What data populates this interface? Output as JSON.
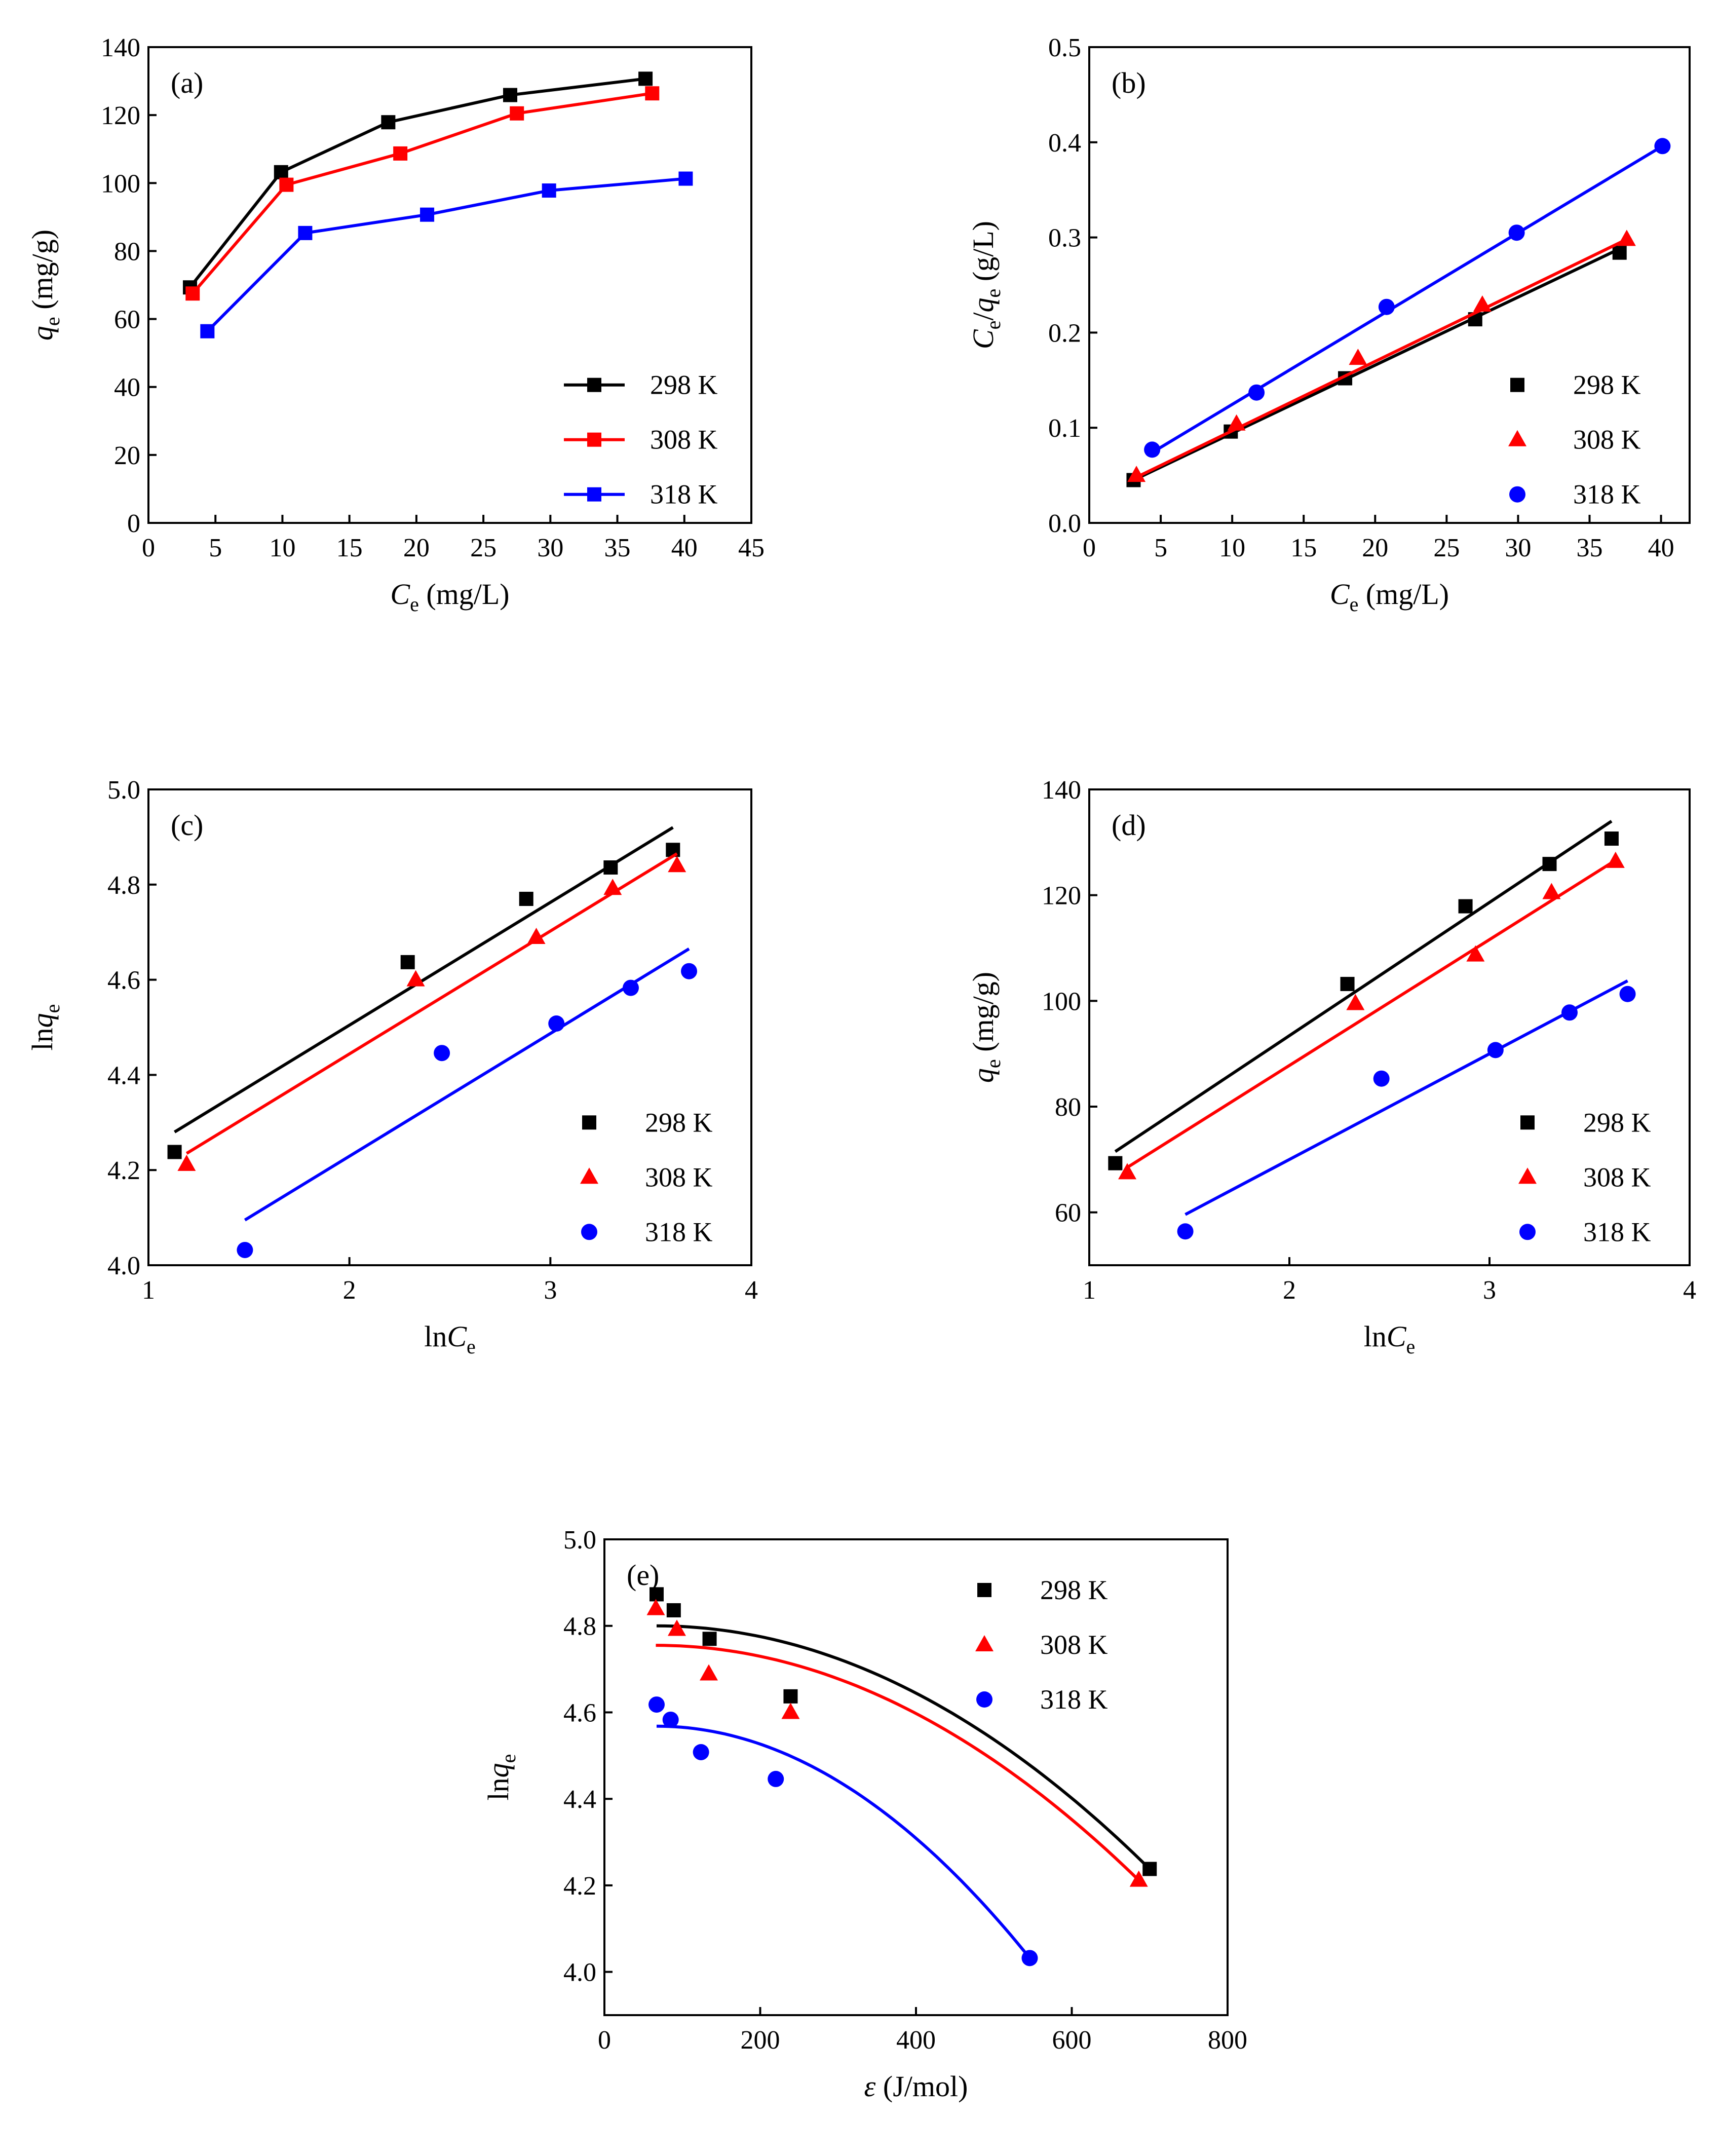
{
  "figure": {
    "description_free": true
  },
  "colors": {
    "298 K": "#000000",
    "308 K": "#ff0000",
    "318 K": "#0000ff"
  },
  "chart_data": [
    {
      "panel_label": "(a)",
      "type": "line",
      "marker": "square",
      "xlim": [
        0,
        45
      ],
      "ylim": [
        0,
        140
      ],
      "xticks": [
        0,
        5,
        10,
        15,
        20,
        25,
        30,
        35,
        40,
        45
      ],
      "yticks": [
        0,
        20,
        40,
        60,
        80,
        100,
        120,
        140
      ],
      "xlabel": {
        "main": "C",
        "sub": "e",
        "rest": " (mg/L)"
      },
      "ylabel": {
        "main": "q",
        "sub": "e",
        "rest": " (mg/g)"
      },
      "legend": "right",
      "legend_style": "line-marker",
      "series": [
        {
          "name": "298 K",
          "x": [
            3.1,
            9.9,
            17.9,
            27.0,
            37.1
          ],
          "y": [
            69.3,
            103.2,
            117.9,
            125.9,
            130.7
          ]
        },
        {
          "name": "308 K",
          "x": [
            3.3,
            10.3,
            18.8,
            27.5,
            37.6
          ],
          "y": [
            67.5,
            99.5,
            108.7,
            120.5,
            126.4
          ]
        },
        {
          "name": "318 K",
          "x": [
            4.4,
            11.7,
            20.8,
            29.9,
            40.1
          ],
          "y": [
            56.4,
            85.3,
            90.7,
            97.8,
            101.3
          ]
        }
      ]
    },
    {
      "panel_label": "(b)",
      "type": "scatter",
      "marker": "mixed",
      "xlim": [
        0,
        42
      ],
      "ylim": [
        0,
        0.5
      ],
      "xticks": [
        0,
        5,
        10,
        15,
        20,
        25,
        30,
        35,
        40
      ],
      "yticks": [
        0.0,
        0.1,
        0.2,
        0.3,
        0.4,
        0.5
      ],
      "ytick_decimals": 1,
      "xlabel": {
        "main": "C",
        "sub": "e",
        "rest": " (mg/L)"
      },
      "ylabel": {
        "main": "C",
        "sub": "e",
        "mid": "/",
        "main2": "q",
        "sub2": "e",
        "rest": " (g/L)"
      },
      "legend": "right",
      "series": [
        {
          "name": "298 K",
          "marker": "square",
          "x": [
            3.1,
            9.9,
            17.9,
            27.0,
            37.1
          ],
          "y": [
            0.045,
            0.096,
            0.152,
            0.214,
            0.284
          ],
          "fit": [
            [
              3.1,
              0.045
            ],
            [
              37.1,
              0.288
            ]
          ]
        },
        {
          "name": "308 K",
          "marker": "triangle",
          "x": [
            3.3,
            10.3,
            18.8,
            27.5,
            37.6
          ],
          "y": [
            0.05,
            0.104,
            0.173,
            0.229,
            0.298
          ],
          "fit": [
            [
              3.3,
              0.048
            ],
            [
              37.6,
              0.298
            ]
          ]
        },
        {
          "name": "318 K",
          "marker": "circle",
          "x": [
            4.4,
            11.7,
            20.8,
            29.9,
            40.1
          ],
          "y": [
            0.077,
            0.137,
            0.227,
            0.305,
            0.396
          ],
          "fit": [
            [
              4.4,
              0.074
            ],
            [
              40.1,
              0.396
            ]
          ]
        }
      ]
    },
    {
      "panel_label": "(c)",
      "type": "scatter",
      "marker": "mixed",
      "xlim": [
        1,
        4
      ],
      "ylim": [
        4.0,
        5.0
      ],
      "xticks": [
        1,
        2,
        3,
        4
      ],
      "yticks": [
        4.0,
        4.2,
        4.4,
        4.6,
        4.8,
        5.0
      ],
      "ytick_decimals": 1,
      "xlabel": {
        "pre": "ln",
        "main": "C",
        "sub": "e",
        "rest": ""
      },
      "ylabel": {
        "pre": "ln",
        "main": "q",
        "sub": "e",
        "rest": ""
      },
      "legend": "bottom-right",
      "series": [
        {
          "name": "298 K",
          "marker": "square",
          "x": [
            1.13,
            2.29,
            2.88,
            3.3,
            3.61
          ],
          "y": [
            4.238,
            4.637,
            4.77,
            4.836,
            4.873
          ],
          "fit": [
            [
              1.13,
              4.28
            ],
            [
              3.61,
              4.92
            ]
          ]
        },
        {
          "name": "308 K",
          "marker": "triangle",
          "x": [
            1.19,
            2.33,
            2.93,
            3.31,
            3.63
          ],
          "y": [
            4.212,
            4.6,
            4.689,
            4.792,
            4.84
          ],
          "fit": [
            [
              1.19,
              4.235
            ],
            [
              3.63,
              4.865
            ]
          ]
        },
        {
          "name": "318 K",
          "marker": "circle",
          "x": [
            1.48,
            2.46,
            3.03,
            3.4,
            3.69
          ],
          "y": [
            4.032,
            4.446,
            4.508,
            4.583,
            4.618
          ],
          "fit": [
            [
              1.48,
              4.095
            ],
            [
              3.69,
              4.665
            ]
          ]
        }
      ]
    },
    {
      "panel_label": "(d)",
      "type": "scatter",
      "marker": "mixed",
      "xlim": [
        1,
        4
      ],
      "ylim": [
        50,
        140
      ],
      "xticks": [
        1,
        2,
        3,
        4
      ],
      "yticks": [
        60,
        80,
        100,
        120,
        140
      ],
      "xlabel": {
        "pre": "ln",
        "main": "C",
        "sub": "e",
        "rest": ""
      },
      "ylabel": {
        "main": "q",
        "sub": "e",
        "rest": " (mg/g)"
      },
      "legend": "bottom-right",
      "series": [
        {
          "name": "298 K",
          "marker": "square",
          "x": [
            1.13,
            2.29,
            2.88,
            3.3,
            3.61
          ],
          "y": [
            69.3,
            103.2,
            117.9,
            125.9,
            130.7
          ],
          "fit": [
            [
              1.13,
              71.5
            ],
            [
              3.61,
              134.0
            ]
          ]
        },
        {
          "name": "308 K",
          "marker": "triangle",
          "x": [
            1.19,
            2.33,
            2.93,
            3.31,
            3.63
          ],
          "y": [
            67.5,
            99.5,
            108.7,
            120.5,
            126.4
          ],
          "fit": [
            [
              1.19,
              68.5
            ],
            [
              3.63,
              126.6
            ]
          ]
        },
        {
          "name": "318 K",
          "marker": "circle",
          "x": [
            1.48,
            2.46,
            3.03,
            3.4,
            3.69
          ],
          "y": [
            56.4,
            85.3,
            90.7,
            97.8,
            101.3
          ],
          "fit": [
            [
              1.48,
              59.6
            ],
            [
              3.69,
              103.8
            ]
          ]
        }
      ]
    },
    {
      "panel_label": "(e)",
      "type": "scatter",
      "marker": "mixed",
      "xlim": [
        0,
        800
      ],
      "ylim": [
        3.9,
        5.0
      ],
      "xticks": [
        0,
        200,
        400,
        600,
        800
      ],
      "yticks": [
        4.0,
        4.2,
        4.4,
        4.6,
        4.8,
        5.0
      ],
      "ytick_decimals": 1,
      "xlabel": {
        "greek": "ε",
        "rest": " (J/mol)"
      },
      "ylabel": {
        "pre": "ln",
        "main": "q",
        "sub": "e",
        "rest": ""
      },
      "legend": "top-right",
      "series": [
        {
          "name": "298 K",
          "marker": "square",
          "x": [
            67,
            89,
            135,
            239,
            700
          ],
          "y": [
            4.873,
            4.836,
            4.77,
            4.637,
            4.238
          ],
          "fit_quadratic": {
            "x0": 67,
            "y0": 4.8,
            "x1": 700,
            "y1": 4.238
          }
        },
        {
          "name": "308 K",
          "marker": "triangle",
          "x": [
            66,
            93,
            134,
            239,
            686
          ],
          "y": [
            4.84,
            4.792,
            4.689,
            4.6,
            4.212
          ],
          "fit_quadratic": {
            "x0": 66,
            "y0": 4.755,
            "x1": 686,
            "y1": 4.212
          }
        },
        {
          "name": "318 K",
          "marker": "circle",
          "x": [
            67,
            85,
            124,
            220,
            546
          ],
          "y": [
            4.618,
            4.583,
            4.508,
            4.446,
            4.032
          ],
          "fit_quadratic": {
            "x0": 67,
            "y0": 4.568,
            "x1": 546,
            "y1": 4.032
          }
        }
      ]
    }
  ]
}
